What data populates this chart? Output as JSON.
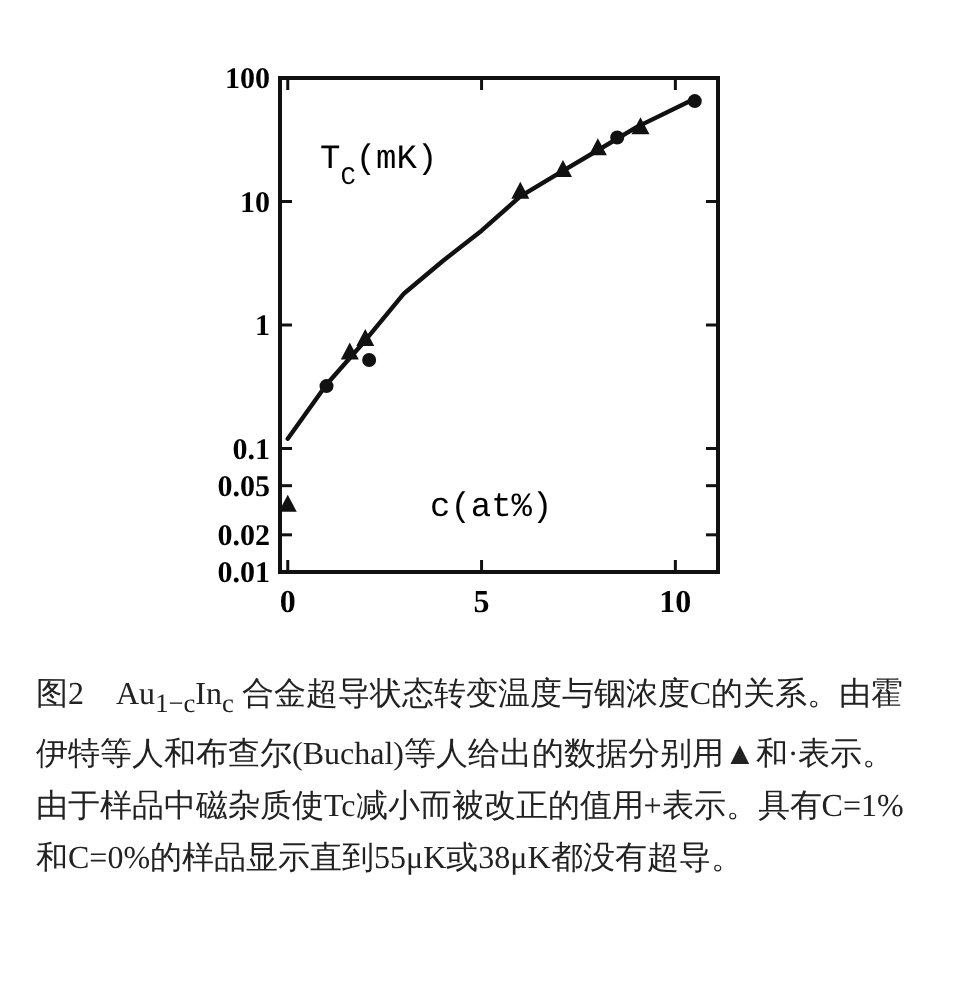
{
  "chart_data": {
    "type": "scatter",
    "xlabel": "c(at%)",
    "ylabel": "T$_{C}$(mK)",
    "log": "y",
    "grid": false,
    "xlim": [
      -0.2,
      11.1
    ],
    "xticks": [
      0,
      5,
      10
    ],
    "ylim": [
      0.01,
      100
    ],
    "yticks": [
      0.01,
      0.02,
      0.05,
      0.1,
      1,
      10,
      100
    ],
    "series": [
      {
        "marker": "triangle",
        "color": "#111111",
        "x": [
          0,
          1.6,
          2.0,
          6.0,
          7.1,
          8.0,
          9.1
        ],
        "values": [
          0.035,
          0.6,
          0.77,
          12,
          18,
          27,
          40
        ]
      },
      {
        "marker": "circle",
        "color": "#111111",
        "x": [
          1.0,
          2.1,
          8.5,
          10.5
        ],
        "values": [
          0.32,
          0.52,
          33,
          65
        ]
      },
      {
        "type": "line",
        "line_style": "solid",
        "marker": "none",
        "color": "#111111",
        "x": [
          0,
          1,
          2,
          3,
          4,
          5,
          6,
          7,
          8,
          9,
          10.5
        ],
        "values": [
          0.12,
          0.33,
          0.75,
          1.8,
          3.3,
          5.8,
          11,
          17,
          26,
          40,
          68
        ]
      }
    ],
    "annotations": [
      "图2　Au$_{1−c}$In$_{c}$ 合金超导状态转变温度与铟浓度C的关系。由霍伊特等人和布查尔(Buchal)等人给出的数据分别用▲和·表示。由于样品中磁杂质使Tc减小而被改正的值用+表示。具有C=1%和C=0%的样品显示直到55μK或38μK都没有超导。"
    ]
  }
}
